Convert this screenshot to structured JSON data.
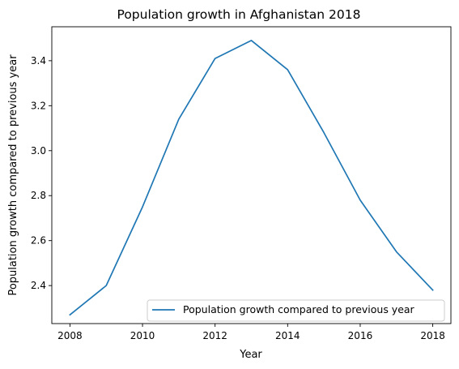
{
  "chart_data": {
    "type": "line",
    "title": "Population growth in Afghanistan 2018",
    "xlabel": "Year",
    "ylabel": "Population growth compared to previous year",
    "x": [
      2008,
      2009,
      2010,
      2011,
      2012,
      2013,
      2014,
      2015,
      2016,
      2017,
      2018
    ],
    "series": [
      {
        "name": "Population growth compared to previous year",
        "color": "#1f77b4",
        "values": [
          2.27,
          2.4,
          2.75,
          3.14,
          3.41,
          3.49,
          3.36,
          3.08,
          2.78,
          2.55,
          2.38
        ]
      }
    ],
    "xlim": [
      2007.5,
      2018.5
    ],
    "ylim": [
      2.231,
      3.551
    ],
    "x_ticks": [
      "2008",
      "2010",
      "2012",
      "2014",
      "2016",
      "2018"
    ],
    "y_ticks": [
      "2.4",
      "2.6",
      "2.8",
      "3.0",
      "3.2",
      "3.4"
    ],
    "grid": false,
    "legend_position": "lower-right"
  }
}
